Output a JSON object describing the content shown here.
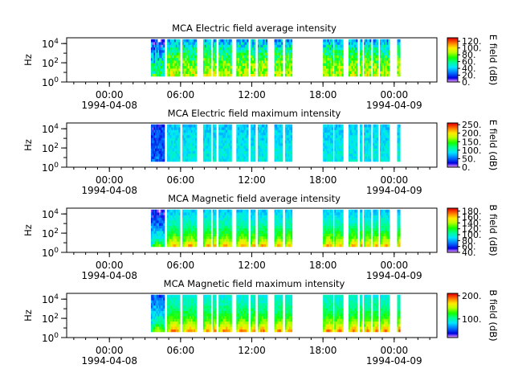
{
  "chart_data": [
    {
      "type": "heatmap",
      "title": "MCA  Electric field average intensity",
      "ylabel": "Hz",
      "ylim_exponent": [
        0,
        4.6
      ],
      "yticks": [
        {
          "base": "10",
          "exp": "0",
          "value": 1
        },
        {
          "base": "10",
          "exp": "2",
          "value": 100
        },
        {
          "base": "10",
          "exp": "4",
          "value": 10000
        }
      ],
      "xlim_hours": [
        -3.6,
        27.6
      ],
      "xticks": [
        {
          "hour": 0,
          "label": "00:00",
          "date": "1994-04-08"
        },
        {
          "hour": 6,
          "label": "06:00",
          "date": ""
        },
        {
          "hour": 12,
          "label": "12:00",
          "date": ""
        },
        {
          "hour": 18,
          "label": "18:00",
          "date": ""
        },
        {
          "hour": 24,
          "label": "00:00",
          "date": "1994-04-09"
        }
      ],
      "colorbar": {
        "label": "E field (dB)",
        "range": [
          0,
          130
        ],
        "ticks": [
          {
            "value": 0,
            "label": "0."
          },
          {
            "value": 20,
            "label": "20."
          },
          {
            "value": 40,
            "label": "40."
          },
          {
            "value": 60,
            "label": "60."
          },
          {
            "value": 80,
            "label": "80."
          },
          {
            "value": 100,
            "label": "100."
          },
          {
            "value": 120,
            "label": "120."
          }
        ]
      },
      "intensity": {
        "base": 80,
        "low_freq_boost": 10,
        "high_freq_drop": 45,
        "noise": 18,
        "early_dip": 30
      },
      "data_intervals_hours": [
        [
          3.5,
          4.65
        ],
        [
          4.85,
          5.95
        ],
        [
          6.15,
          7.35
        ],
        [
          7.9,
          8.55
        ],
        [
          8.7,
          9.0
        ],
        [
          9.2,
          10.3
        ],
        [
          10.7,
          11.7
        ],
        [
          11.9,
          12.3
        ],
        [
          12.5,
          13.3
        ],
        [
          13.9,
          14.6
        ],
        [
          14.8,
          15.4
        ],
        [
          18.0,
          18.85
        ],
        [
          18.95,
          19.7
        ],
        [
          20.15,
          20.9
        ],
        [
          21.1,
          21.3
        ],
        [
          21.45,
          22.05
        ],
        [
          22.2,
          22.65
        ],
        [
          22.8,
          23.6
        ],
        [
          24.25,
          24.5
        ]
      ]
    },
    {
      "type": "heatmap",
      "title": "MCA  Electric field maximum intensity",
      "ylabel": "Hz",
      "ylim_exponent": [
        0,
        4.6
      ],
      "yticks": [
        {
          "base": "10",
          "exp": "0",
          "value": 1
        },
        {
          "base": "10",
          "exp": "2",
          "value": 100
        },
        {
          "base": "10",
          "exp": "4",
          "value": 10000
        }
      ],
      "xlim_hours": [
        -3.6,
        27.6
      ],
      "xticks": [
        {
          "hour": 0,
          "label": "00:00",
          "date": "1994-04-08"
        },
        {
          "hour": 6,
          "label": "06:00",
          "date": ""
        },
        {
          "hour": 12,
          "label": "12:00",
          "date": ""
        },
        {
          "hour": 18,
          "label": "18:00",
          "date": ""
        },
        {
          "hour": 24,
          "label": "00:00",
          "date": "1994-04-09"
        }
      ],
      "colorbar": {
        "label": "E field (dB)",
        "range": [
          0,
          260
        ],
        "ticks": [
          {
            "value": 0,
            "label": "0."
          },
          {
            "value": 50,
            "label": "50."
          },
          {
            "value": 100,
            "label": "100."
          },
          {
            "value": 150,
            "label": "150."
          },
          {
            "value": 200,
            "label": "200."
          },
          {
            "value": 250,
            "label": "250."
          }
        ]
      },
      "intensity": {
        "base": 95,
        "low_freq_boost": 0,
        "high_freq_drop": 15,
        "noise": 16,
        "early_dip": 55
      },
      "data_intervals_hours": [
        [
          3.5,
          4.65
        ],
        [
          4.85,
          5.95
        ],
        [
          6.15,
          7.35
        ],
        [
          7.9,
          8.55
        ],
        [
          8.7,
          9.0
        ],
        [
          9.2,
          10.3
        ],
        [
          10.7,
          11.7
        ],
        [
          11.9,
          12.3
        ],
        [
          12.5,
          13.3
        ],
        [
          13.9,
          14.6
        ],
        [
          14.8,
          15.4
        ],
        [
          18.0,
          18.85
        ],
        [
          18.95,
          19.7
        ],
        [
          20.15,
          20.9
        ],
        [
          21.1,
          21.3
        ],
        [
          21.45,
          22.05
        ],
        [
          22.2,
          22.65
        ],
        [
          22.8,
          23.6
        ],
        [
          24.25,
          24.5
        ]
      ]
    },
    {
      "type": "heatmap",
      "title": "MCA  Magnetic field average intensity",
      "ylabel": "Hz",
      "ylim_exponent": [
        0,
        4.6
      ],
      "yticks": [
        {
          "base": "10",
          "exp": "0",
          "value": 1
        },
        {
          "base": "10",
          "exp": "2",
          "value": 100
        },
        {
          "base": "10",
          "exp": "4",
          "value": 10000
        }
      ],
      "xlim_hours": [
        -3.6,
        27.6
      ],
      "xticks": [
        {
          "hour": 0,
          "label": "00:00",
          "date": "1994-04-08"
        },
        {
          "hour": 6,
          "label": "06:00",
          "date": ""
        },
        {
          "hour": 12,
          "label": "12:00",
          "date": ""
        },
        {
          "hour": 18,
          "label": "18:00",
          "date": ""
        },
        {
          "hour": 24,
          "label": "00:00",
          "date": "1994-04-09"
        }
      ],
      "colorbar": {
        "label": "B field (dB)",
        "range": [
          40,
          190
        ],
        "ticks": [
          {
            "value": 40,
            "label": "40."
          },
          {
            "value": 60,
            "label": "60."
          },
          {
            "value": 80,
            "label": "80."
          },
          {
            "value": 100,
            "label": "100."
          },
          {
            "value": 120,
            "label": "120."
          },
          {
            "value": 140,
            "label": "140."
          },
          {
            "value": 160,
            "label": "160."
          },
          {
            "value": 180,
            "label": "180."
          }
        ]
      },
      "intensity": {
        "base": 110,
        "low_freq_boost": 45,
        "high_freq_drop": 25,
        "noise": 8,
        "early_dip": 40
      },
      "data_intervals_hours": [
        [
          3.5,
          4.65
        ],
        [
          4.85,
          5.95
        ],
        [
          6.15,
          7.35
        ],
        [
          7.9,
          8.55
        ],
        [
          8.7,
          9.0
        ],
        [
          9.2,
          10.3
        ],
        [
          10.7,
          11.7
        ],
        [
          11.9,
          12.3
        ],
        [
          12.5,
          13.3
        ],
        [
          13.9,
          14.6
        ],
        [
          14.8,
          15.4
        ],
        [
          18.0,
          18.85
        ],
        [
          18.95,
          19.7
        ],
        [
          20.15,
          20.9
        ],
        [
          21.1,
          21.3
        ],
        [
          21.45,
          22.05
        ],
        [
          22.2,
          22.65
        ],
        [
          22.8,
          23.6
        ],
        [
          24.25,
          24.5
        ]
      ]
    },
    {
      "type": "heatmap",
      "title": "MCA  Magnetic field maximum intensity",
      "ylabel": "Hz",
      "ylim_exponent": [
        0,
        4.6
      ],
      "yticks": [
        {
          "base": "10",
          "exp": "0",
          "value": 1
        },
        {
          "base": "10",
          "exp": "2",
          "value": 100
        },
        {
          "base": "10",
          "exp": "4",
          "value": 10000
        }
      ],
      "xlim_hours": [
        -3.6,
        27.6
      ],
      "xticks": [
        {
          "hour": 0,
          "label": "00:00",
          "date": "1994-04-08"
        },
        {
          "hour": 6,
          "label": "06:00",
          "date": ""
        },
        {
          "hour": 12,
          "label": "12:00",
          "date": ""
        },
        {
          "hour": 18,
          "label": "18:00",
          "date": ""
        },
        {
          "hour": 24,
          "label": "00:00",
          "date": "1994-04-09"
        }
      ],
      "colorbar": {
        "label": "B field (dB)",
        "range": [
          20,
          210
        ],
        "ticks": [
          {
            "value": 100,
            "label": "100."
          },
          {
            "value": 200,
            "label": "200."
          }
        ]
      },
      "intensity": {
        "base": 115,
        "low_freq_boost": 60,
        "high_freq_drop": 25,
        "noise": 10,
        "early_dip": 45
      },
      "data_intervals_hours": [
        [
          3.5,
          4.65
        ],
        [
          4.85,
          5.95
        ],
        [
          6.15,
          7.35
        ],
        [
          7.9,
          8.55
        ],
        [
          8.7,
          9.0
        ],
        [
          9.2,
          10.3
        ],
        [
          10.7,
          11.7
        ],
        [
          11.9,
          12.3
        ],
        [
          12.5,
          13.3
        ],
        [
          13.9,
          14.6
        ],
        [
          14.8,
          15.4
        ],
        [
          18.0,
          18.85
        ],
        [
          18.95,
          19.7
        ],
        [
          20.15,
          20.9
        ],
        [
          21.1,
          21.3
        ],
        [
          21.45,
          22.05
        ],
        [
          22.2,
          22.65
        ],
        [
          22.8,
          23.6
        ],
        [
          24.25,
          24.5
        ]
      ]
    }
  ]
}
